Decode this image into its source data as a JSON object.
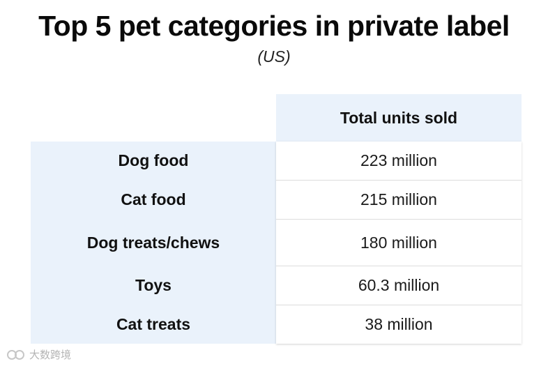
{
  "chart_data": {
    "type": "table",
    "title": "Top 5 pet categories in private label",
    "subtitle": "(US)",
    "column_header": "Total units sold",
    "rows": [
      {
        "category": "Dog food",
        "value_text": "223 million",
        "value": 223
      },
      {
        "category": "Cat food",
        "value_text": "215 million",
        "value": 215
      },
      {
        "category": "Dog treats/chews",
        "value_text": "180 million",
        "value": 180
      },
      {
        "category": "Toys",
        "value_text": "60.3 million",
        "value": 60.3
      },
      {
        "category": "Cat treats",
        "value_text": "38 million",
        "value": 38
      }
    ],
    "units": "million units"
  },
  "watermark": {
    "text": "大数跨境"
  },
  "colors": {
    "header_bg": "#eaf2fb",
    "label_bg": "#eaf2fb",
    "value_bg": "#ffffff",
    "text": "#111111"
  }
}
